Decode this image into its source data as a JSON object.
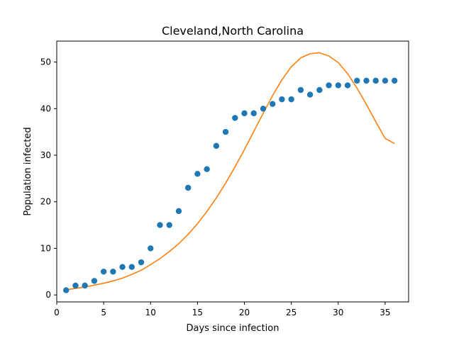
{
  "chart_data": {
    "type": "scatter",
    "title": "Cleveland,North Carolina",
    "xlabel": "Days since infection",
    "ylabel": "Population infected",
    "xlim": [
      0,
      37.5
    ],
    "ylim": [
      -1.5,
      54.5
    ],
    "x_ticks": [
      0,
      5,
      10,
      15,
      20,
      25,
      30,
      35
    ],
    "y_ticks": [
      0,
      10,
      20,
      30,
      40,
      50
    ],
    "grid": false,
    "legend": "none",
    "series": [
      {
        "kind": "scatter",
        "color": "#1f77b4",
        "x": [
          1,
          2,
          3,
          4,
          5,
          6,
          7,
          8,
          9,
          10,
          11,
          12,
          13,
          14,
          15,
          16,
          17,
          18,
          19,
          20,
          21,
          22,
          23,
          24,
          25,
          26,
          27,
          28,
          29,
          30,
          31,
          32,
          33,
          34,
          35,
          36
        ],
        "y": [
          1,
          2,
          2,
          3,
          5,
          5,
          6,
          6,
          7,
          10,
          15,
          15,
          18,
          23,
          26,
          27,
          32,
          35,
          38,
          39,
          39,
          40,
          41,
          42,
          42,
          44,
          43,
          44,
          45,
          45,
          45,
          46,
          46,
          46,
          46,
          46
        ]
      },
      {
        "kind": "line",
        "color": "#ff7f0e",
        "x": [
          1,
          2,
          3,
          4,
          5,
          6,
          7,
          8,
          9,
          10,
          11,
          12,
          13,
          14,
          15,
          16,
          17,
          18,
          19,
          20,
          21,
          22,
          23,
          24,
          25,
          26,
          27,
          28,
          29,
          30,
          31,
          32,
          33,
          34,
          35,
          36
        ],
        "y": [
          1.1,
          1.4,
          1.7,
          2.1,
          2.5,
          3.0,
          3.6,
          4.4,
          5.3,
          6.5,
          7.8,
          9.3,
          11.0,
          13.0,
          15.3,
          17.9,
          20.8,
          24.0,
          27.5,
          31.2,
          35.1,
          39.0,
          42.8,
          46.2,
          49.0,
          50.9,
          51.8,
          52.0,
          51.3,
          49.9,
          47.5,
          44.4,
          40.9,
          37.2,
          33.6,
          32.5
        ]
      }
    ]
  }
}
